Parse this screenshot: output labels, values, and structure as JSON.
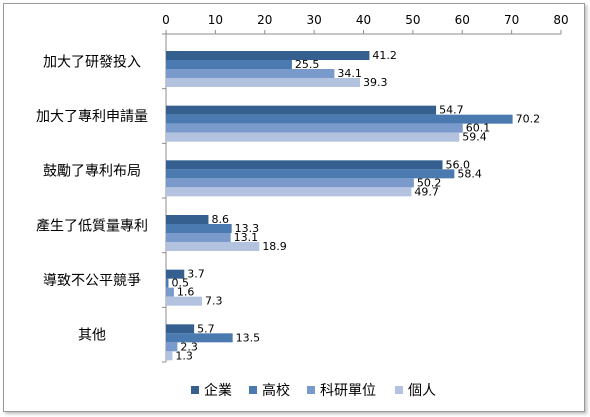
{
  "chart_data": {
    "type": "bar",
    "orientation": "horizontal",
    "categories": [
      "加大了研發投入",
      "加大了專利申請量",
      "鼓勵了專利布局",
      "產生了低質量專利",
      "導致不公平競爭",
      "其他"
    ],
    "series": [
      {
        "name": "企業",
        "color": "#355f8f",
        "values": [
          41.2,
          54.7,
          56.0,
          8.6,
          3.7,
          5.7
        ]
      },
      {
        "name": "高校",
        "color": "#4a7ab0",
        "values": [
          25.5,
          70.2,
          58.4,
          13.3,
          0.5,
          13.5
        ]
      },
      {
        "name": "科研單位",
        "color": "#7a9acc",
        "values": [
          34.1,
          60.1,
          50.2,
          13.1,
          1.6,
          2.3
        ]
      },
      {
        "name": "個人",
        "color": "#b3c2de",
        "values": [
          39.3,
          59.4,
          49.7,
          18.9,
          7.3,
          1.3
        ]
      }
    ],
    "value_labels": [
      [
        "41.2",
        "54.7",
        "56.0",
        "8.6",
        "3.7",
        "5.7"
      ],
      [
        "25.5",
        "70.2",
        "58.4",
        "13.3",
        "0.5",
        "13.5"
      ],
      [
        "34.1",
        "60.1",
        "50.2",
        "13.1",
        "1.6",
        "2.3"
      ],
      [
        "39.3",
        "59.4",
        "49.7",
        "18.9",
        "7.3",
        "1.3"
      ]
    ],
    "xlim": [
      0,
      80
    ],
    "xticks": [
      "0",
      "10",
      "20",
      "30",
      "40",
      "50",
      "60",
      "70",
      "80"
    ],
    "axis_position": "top",
    "legend_position": "bottom",
    "grid": false,
    "title": "",
    "xlabel": "",
    "ylabel": ""
  }
}
